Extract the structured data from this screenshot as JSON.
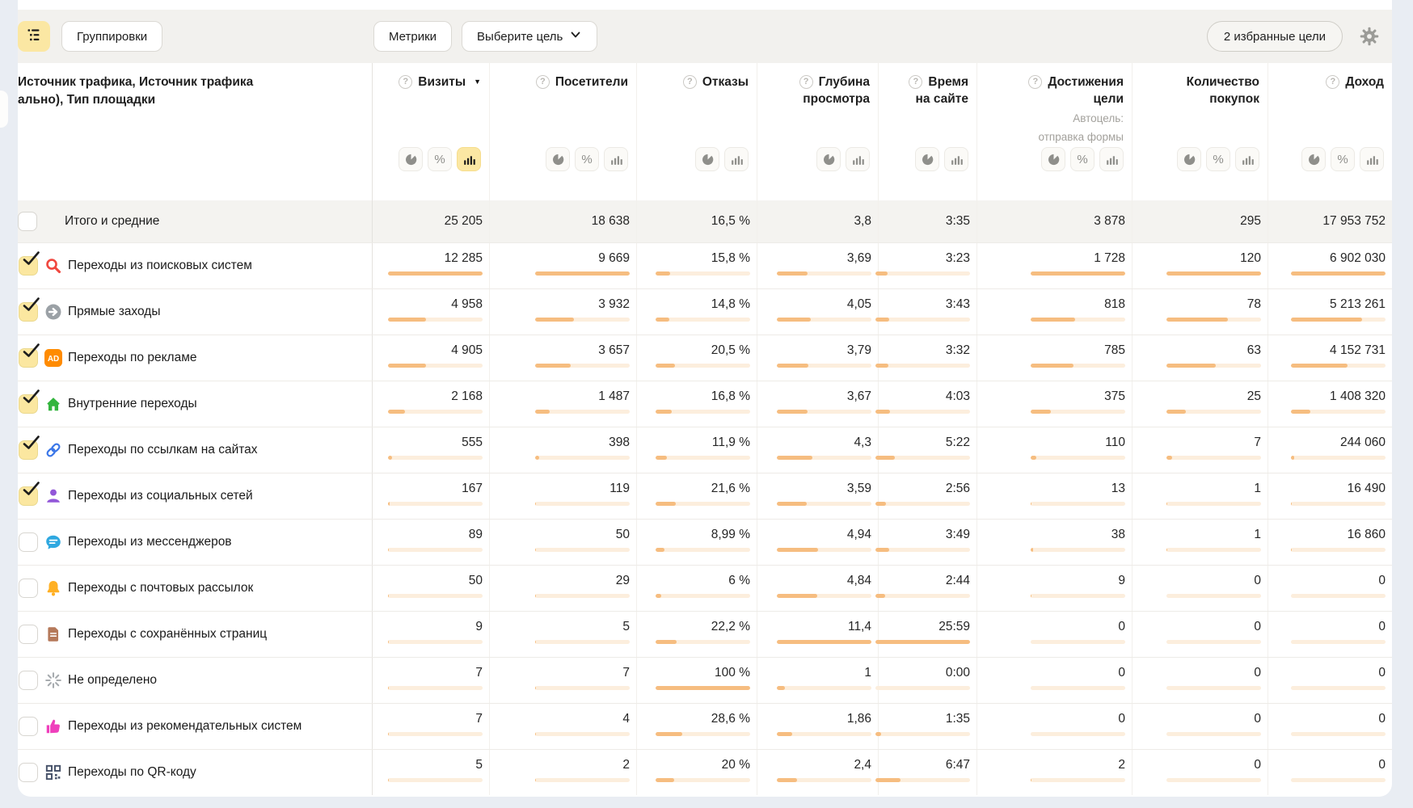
{
  "toolbar": {
    "groupings": "Группировки",
    "metrics": "Метрики",
    "choose_goal": "Выберите цель",
    "favorite_goals": "2 избранные цели"
  },
  "table": {
    "name_header": [
      "Источник трафика, Источник трафика",
      "ально), Тип площадки"
    ],
    "columns": [
      {
        "label": "Визиты",
        "help": true,
        "sorted": true,
        "toggles": [
          "pie",
          "percent",
          "bars"
        ],
        "active_toggle": "bars"
      },
      {
        "label": "Посетители",
        "help": true,
        "toggles": [
          "pie",
          "percent",
          "bars"
        ]
      },
      {
        "label": "Отказы",
        "help": true,
        "toggles": [
          "pie",
          "bars"
        ]
      },
      {
        "label": "Глубина просмотра",
        "lines": [
          "Глубина",
          "просмотра"
        ],
        "help": true,
        "toggles": [
          "pie",
          "bars"
        ]
      },
      {
        "label": "Время на сайте",
        "lines": [
          "Время",
          "на сайте"
        ],
        "help": true,
        "toggles": [
          "pie",
          "bars"
        ]
      },
      {
        "label": "Достижения цели",
        "lines": [
          "Достижения",
          "цели"
        ],
        "help": true,
        "sub": [
          "Автоцель:",
          "отправка формы"
        ],
        "toggles": [
          "pie",
          "percent",
          "bars"
        ]
      },
      {
        "label": "Количество покупок",
        "lines": [
          "Количество",
          "покупок"
        ],
        "help": false,
        "toggles": [
          "pie",
          "percent",
          "bars"
        ]
      },
      {
        "label": "Доход",
        "help": true,
        "toggles": [
          "pie",
          "percent",
          "bars"
        ]
      }
    ],
    "totals": {
      "label": "Итого и средние",
      "checked": false,
      "values": [
        "25 205",
        "18 638",
        "16,5 %",
        "3,8",
        "3:35",
        "3 878",
        "295",
        "17 953 752"
      ]
    },
    "rows": [
      {
        "label": "Переходы из поисковых систем",
        "icon": "search-icon",
        "checked": true,
        "values": [
          "12 285",
          "9 669",
          "15,8 %",
          "3,69",
          "3:23",
          "1 728",
          "120",
          "6 902 030"
        ],
        "bars": [
          100,
          100,
          15.8,
          32.4,
          13,
          100,
          100,
          100
        ]
      },
      {
        "label": "Прямые заходы",
        "icon": "direct-arrow-icon",
        "checked": true,
        "values": [
          "4 958",
          "3 932",
          "14,8 %",
          "4,05",
          "3:43",
          "818",
          "78",
          "5 213 261"
        ],
        "bars": [
          40.4,
          40.7,
          14.8,
          35.5,
          14.3,
          47.3,
          65,
          75.5
        ]
      },
      {
        "label": "Переходы по рекламе",
        "icon": "ad-icon",
        "checked": true,
        "values": [
          "4 905",
          "3 657",
          "20,5 %",
          "3,79",
          "3:32",
          "785",
          "63",
          "4 152 731"
        ],
        "bars": [
          39.9,
          37.8,
          20.5,
          33.2,
          13.6,
          45.4,
          52.5,
          60.2
        ]
      },
      {
        "label": "Внутренние переходы",
        "icon": "home-icon",
        "checked": true,
        "values": [
          "2 168",
          "1 487",
          "16,8 %",
          "3,67",
          "4:03",
          "375",
          "25",
          "1 408 320"
        ],
        "bars": [
          17.6,
          15.4,
          16.8,
          32.2,
          15.6,
          21.7,
          20.8,
          20.4
        ]
      },
      {
        "label": "Переходы по ссылкам на сайтах",
        "icon": "link-icon",
        "checked": true,
        "values": [
          "555",
          "398",
          "11,9 %",
          "4,3",
          "5:22",
          "110",
          "7",
          "244 060"
        ],
        "bars": [
          4.5,
          4.1,
          11.9,
          37.7,
          20.7,
          6.4,
          5.8,
          3.5
        ]
      },
      {
        "label": "Переходы из социальных сетей",
        "icon": "social-person-icon",
        "checked": true,
        "values": [
          "167",
          "119",
          "21,6 %",
          "3,59",
          "2:56",
          "13",
          "1",
          "16 490"
        ],
        "bars": [
          1.4,
          1.2,
          21.6,
          31.5,
          11.3,
          0.8,
          0.8,
          0.3
        ]
      },
      {
        "label": "Переходы из мессенджеров",
        "icon": "messenger-bubble-icon",
        "checked": false,
        "values": [
          "89",
          "50",
          "8,99 %",
          "4,94",
          "3:49",
          "38",
          "1",
          "16 860"
        ],
        "bars": [
          0.7,
          0.5,
          9,
          43.3,
          14.7,
          2.2,
          0.8,
          0.3
        ]
      },
      {
        "label": "Переходы с почтовых рассылок",
        "icon": "mail-bell-icon",
        "checked": false,
        "values": [
          "50",
          "29",
          "6 %",
          "4,84",
          "2:44",
          "9",
          "0",
          "0"
        ],
        "bars": [
          0.4,
          0.3,
          6,
          42.5,
          10.5,
          0.5,
          0,
          0
        ]
      },
      {
        "label": "Переходы с сохранённых страниц",
        "icon": "saved-page-icon",
        "checked": false,
        "values": [
          "9",
          "5",
          "22,2 %",
          "11,4",
          "25:59",
          "0",
          "0",
          "0"
        ],
        "bars": [
          0.1,
          0.1,
          22.2,
          100,
          100,
          0,
          0,
          0
        ]
      },
      {
        "label": "Не определено",
        "icon": "undefined-spinner-icon",
        "checked": false,
        "values": [
          "7",
          "7",
          "100 %",
          "1",
          "0:00",
          "0",
          "0",
          "0"
        ],
        "bars": [
          0.1,
          0.1,
          100,
          8.8,
          0,
          0,
          0,
          0
        ]
      },
      {
        "label": "Переходы из рекомендательных систем",
        "icon": "thumbs-up-icon",
        "checked": false,
        "values": [
          "7",
          "4",
          "28,6 %",
          "1,86",
          "1:35",
          "0",
          "0",
          "0"
        ],
        "bars": [
          0.1,
          0.1,
          28.6,
          16.3,
          6.1,
          0,
          0,
          0
        ]
      },
      {
        "label": "Переходы по QR-коду",
        "icon": "qr-code-icon",
        "checked": false,
        "values": [
          "5",
          "2",
          "20 %",
          "2,4",
          "6:47",
          "2",
          "0",
          "0"
        ],
        "bars": [
          0.1,
          0.1,
          20,
          21.1,
          26.1,
          0.1,
          0,
          0
        ]
      }
    ]
  }
}
